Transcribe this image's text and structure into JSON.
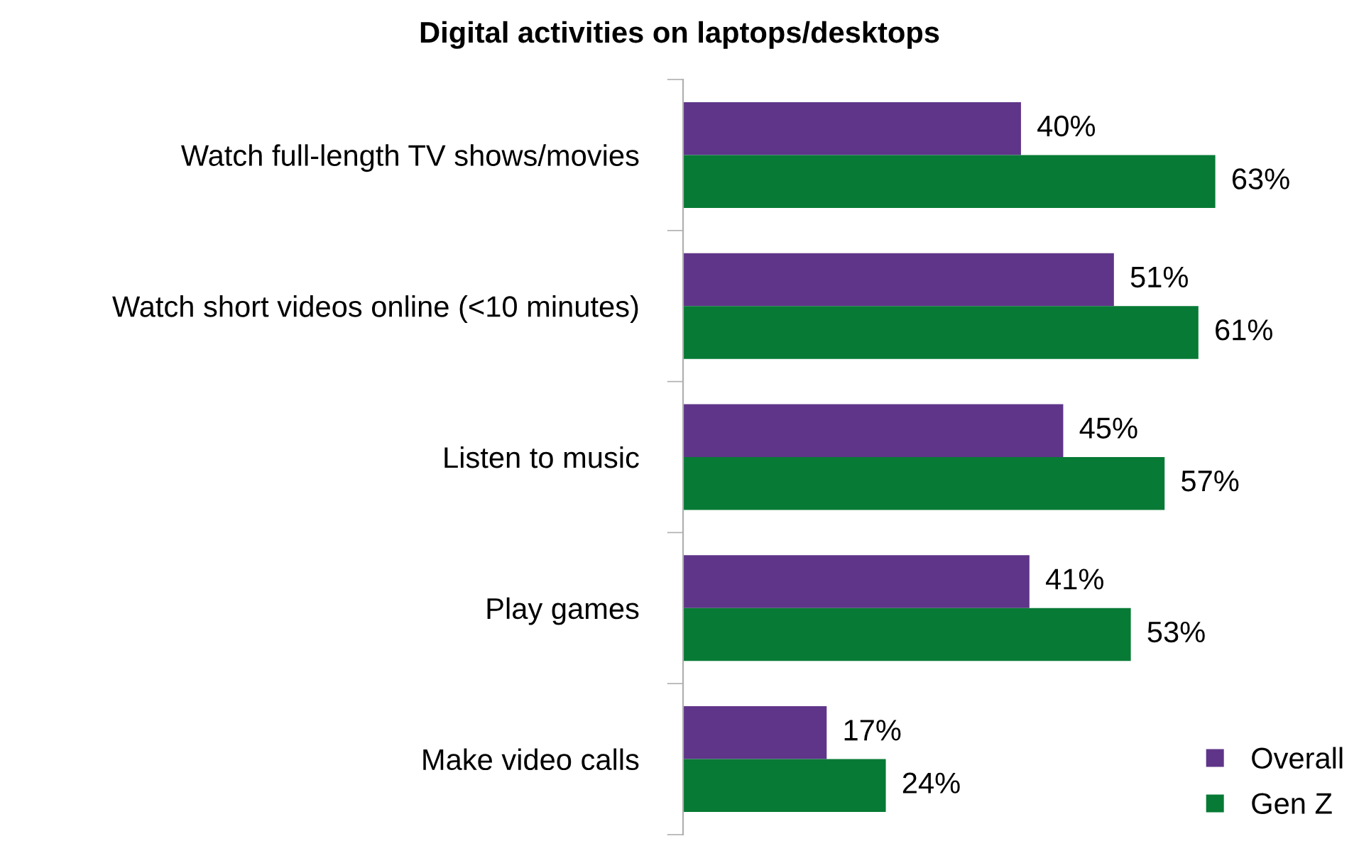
{
  "chart_data": {
    "type": "bar",
    "orientation": "horizontal",
    "title": "Digital activities on laptops/desktops",
    "categories": [
      "Watch full-length TV shows/movies",
      "Watch short videos online (<10 minutes)",
      "Listen to music",
      "Play games",
      "Make video calls"
    ],
    "series": [
      {
        "name": "Overall",
        "color": "#5f3589",
        "values": [
          40,
          51,
          45,
          41,
          17
        ],
        "value_labels": [
          "40%",
          "51%",
          "45%",
          "41%",
          "17%"
        ]
      },
      {
        "name": "Gen Z",
        "color": "#077a35",
        "values": [
          63,
          61,
          57,
          53,
          24
        ],
        "value_labels": [
          "63%",
          "61%",
          "57%",
          "53%",
          "24%"
        ]
      }
    ],
    "legend": "bottom right"
  }
}
